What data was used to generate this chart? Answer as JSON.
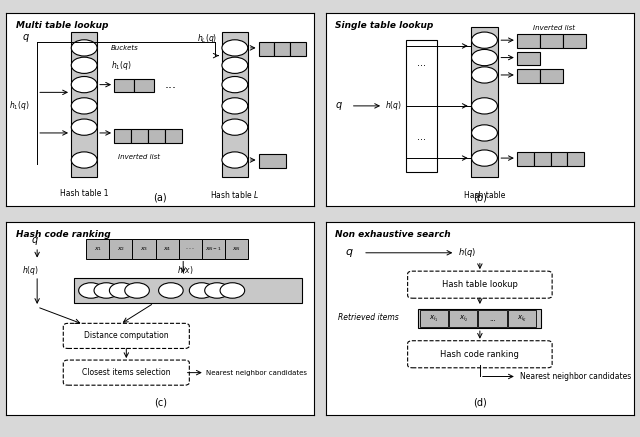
{
  "title_a": "Multi table lookup",
  "title_b": "Single table lookup",
  "title_c": "Hash code ranking",
  "title_d": "Non exhaustive search",
  "label_a": "(a)",
  "label_b": "(b)",
  "label_c": "(c)",
  "label_d": "(d)",
  "gray_box": "#c8c8c8",
  "gray_cell": "#b8b8b8",
  "white": "#ffffff",
  "black": "#000000",
  "panel_bg": "#ffffff",
  "fig_bg": "#d8d8d8"
}
